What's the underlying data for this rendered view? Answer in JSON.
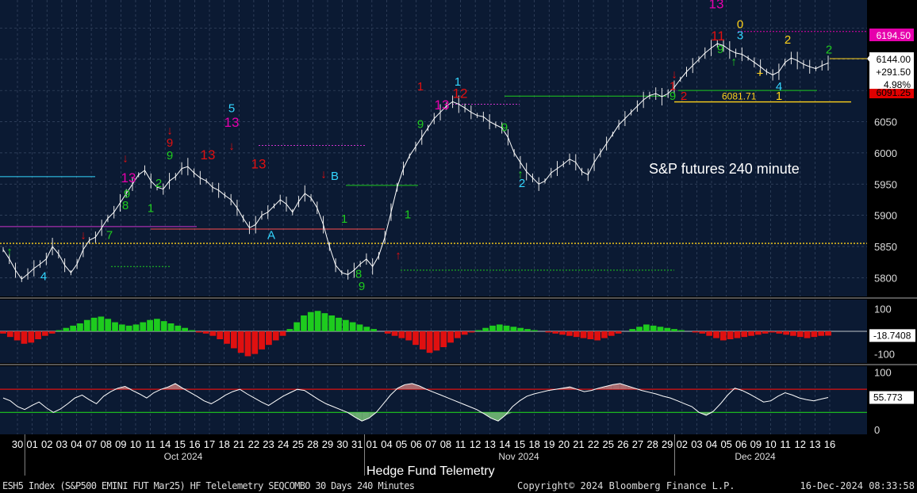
{
  "chart_data": {
    "type": "line",
    "title": "S&P futures 240 minute",
    "subtitle": "Hedge Fund Telemetry",
    "footer_left": "ESH5 Index (S&P500 EMINI FUT  Mar25) HF Telelemetry SEQCOMBO 30 Days 240 Minutes",
    "footer_center": "Copyright© 2024 Bloomberg Finance L.P.",
    "footer_right": "16-Dec-2024 08:33:58",
    "x_ticks": [
      "30",
      "01",
      "02",
      "03",
      "04",
      "07",
      "08",
      "09",
      "10",
      "11",
      "14",
      "15",
      "16",
      "17",
      "18",
      "21",
      "22",
      "23",
      "24",
      "25",
      "28",
      "29",
      "30",
      "31",
      "01",
      "04",
      "05",
      "06",
      "07",
      "08",
      "11",
      "12",
      "13",
      "14",
      "15",
      "18",
      "19",
      "20",
      "21",
      "22",
      "25",
      "26",
      "27",
      "28",
      "29",
      "02",
      "03",
      "04",
      "05",
      "06",
      "09",
      "10",
      "11",
      "12",
      "13",
      "16"
    ],
    "months": [
      "Oct 2024",
      "Nov 2024",
      "Dec 2024"
    ],
    "price_panel": {
      "ylim": [
        5770,
        6245
      ],
      "yticks": [
        5800,
        5850,
        5900,
        5950,
        6000,
        6050
      ],
      "closes": [
        5845,
        5830,
        5812,
        5798,
        5806,
        5815,
        5822,
        5830,
        5850,
        5838,
        5820,
        5808,
        5822,
        5845,
        5860,
        5865,
        5880,
        5895,
        5905,
        5920,
        5935,
        5950,
        5965,
        5972,
        5955,
        5945,
        5942,
        5955,
        5962,
        5975,
        5978,
        5968,
        5960,
        5955,
        5945,
        5940,
        5932,
        5925,
        5912,
        5895,
        5880,
        5885,
        5900,
        5905,
        5915,
        5925,
        5918,
        5905,
        5922,
        5935,
        5928,
        5912,
        5885,
        5850,
        5820,
        5808,
        5805,
        5812,
        5822,
        5830,
        5818,
        5835,
        5865,
        5905,
        5945,
        5975,
        5995,
        6010,
        6025,
        6040,
        6055,
        6065,
        6075,
        6082,
        6078,
        6072,
        6065,
        6060,
        6058,
        6050,
        6045,
        6040,
        6025,
        6000,
        5985,
        5970,
        5960,
        5950,
        5955,
        5968,
        5975,
        5982,
        5990,
        5985,
        5970,
        5965,
        5985,
        6000,
        6015,
        6030,
        6045,
        6055,
        6065,
        6075,
        6085,
        6092,
        6095,
        6090,
        6095,
        6105,
        6118,
        6130,
        6140,
        6150,
        6160,
        6168,
        6175,
        6172,
        6165,
        6160,
        6158,
        6152,
        6145,
        6138,
        6130,
        6125,
        6130,
        6145,
        6152,
        6148,
        6142,
        6138,
        6135,
        6140,
        6144
      ],
      "levels": [
        {
          "label": "6194.50",
          "value": 6194.5,
          "color": "#e600ac"
        },
        {
          "label": "6144.00",
          "value": 6144.0,
          "color": "#ffffff"
        },
        {
          "label": "6091.25",
          "value": 6091.25,
          "color": "#e00000"
        },
        {
          "label": "6081.71",
          "value": 6081.71,
          "color": "#ffffff"
        }
      ],
      "change": "+291.50",
      "change_pct": "4.98%",
      "reference_line": {
        "label": "6081.71",
        "value": 6081.71
      },
      "dotted_level": 5855
    },
    "momentum_panel": {
      "ylim": [
        -140,
        140
      ],
      "yticks": [
        100,
        -100
      ],
      "last_label": "-18.7408",
      "values": [
        -10,
        -25,
        -40,
        -55,
        -50,
        -35,
        -20,
        -10,
        5,
        15,
        25,
        35,
        50,
        60,
        65,
        55,
        40,
        30,
        25,
        30,
        40,
        50,
        55,
        45,
        35,
        25,
        15,
        5,
        -5,
        -10,
        -20,
        -35,
        -55,
        -75,
        -95,
        -110,
        -100,
        -80,
        -60,
        -40,
        -20,
        10,
        40,
        70,
        85,
        90,
        80,
        70,
        60,
        50,
        40,
        30,
        20,
        10,
        0,
        -10,
        -20,
        -30,
        -40,
        -60,
        -80,
        -95,
        -85,
        -70,
        -50,
        -30,
        -15,
        -5,
        5,
        15,
        25,
        30,
        25,
        20,
        15,
        10,
        5,
        0,
        -5,
        -10,
        -15,
        -20,
        -25,
        -30,
        -35,
        -40,
        -30,
        -20,
        -10,
        0,
        10,
        20,
        30,
        25,
        20,
        15,
        10,
        5,
        0,
        -5,
        -10,
        -20,
        -30,
        -40,
        -35,
        -30,
        -25,
        -20,
        -15,
        -10,
        -5,
        -10,
        -15,
        -20,
        -25,
        -30,
        -25,
        -20,
        -19
      ]
    },
    "oscillator_panel": {
      "ylim": [
        -8,
        110
      ],
      "yticks": [
        100,
        0
      ],
      "overbought": 70,
      "oversold": 30,
      "last_label": "55.773",
      "values": [
        55,
        50,
        40,
        35,
        42,
        48,
        38,
        30,
        36,
        45,
        55,
        60,
        52,
        45,
        58,
        66,
        72,
        75,
        68,
        62,
        55,
        64,
        70,
        74,
        80,
        72,
        65,
        58,
        50,
        45,
        52,
        60,
        66,
        70,
        62,
        55,
        48,
        42,
        50,
        58,
        64,
        70,
        68,
        60,
        52,
        45,
        40,
        35,
        30,
        22,
        15,
        20,
        30,
        45,
        60,
        72,
        78,
        80,
        76,
        70,
        65,
        60,
        55,
        50,
        45,
        40,
        35,
        28,
        20,
        15,
        25,
        40,
        50,
        58,
        62,
        65,
        68,
        70,
        72,
        74,
        70,
        66,
        68,
        72,
        75,
        78,
        80,
        76,
        72,
        68,
        65,
        62,
        58,
        55,
        50,
        45,
        40,
        30,
        25,
        32,
        45,
        60,
        72,
        68,
        62,
        55,
        48,
        50,
        58,
        64,
        60,
        55,
        52,
        50,
        53,
        55.773
      ]
    }
  },
  "colors": {
    "background": "#000000",
    "panel_background": "#0b1a33",
    "grid": "#3a4a66",
    "price_line": "#ffffff",
    "bullish": "#1ecb1e",
    "bearish": "#e01010",
    "tdcountdown": "#e600ac",
    "cyan": "#33d6ff",
    "yellow": "#ffd21a"
  }
}
